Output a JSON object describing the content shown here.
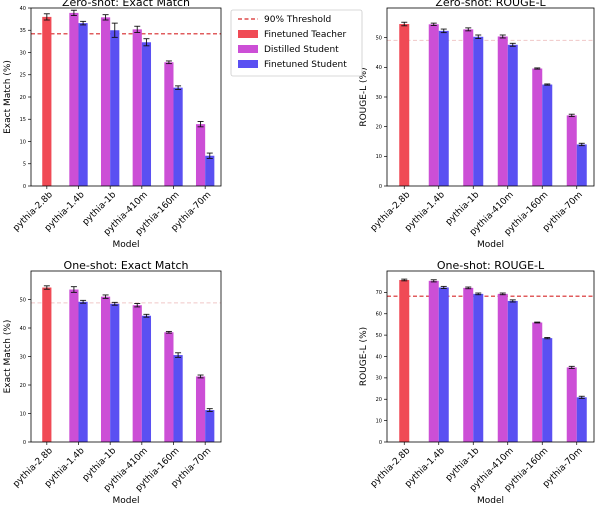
{
  "legend": {
    "items": [
      {
        "label": "90% Threshold",
        "kind": "line",
        "color": "#d62728"
      },
      {
        "label": "Finetuned Teacher",
        "kind": "patch",
        "color": "#f04a55"
      },
      {
        "label": "Distilled Student",
        "kind": "patch",
        "color": "#cc4fd6"
      },
      {
        "label": "Finetuned Student",
        "kind": "patch",
        "color": "#5a50f2"
      }
    ]
  },
  "colors": {
    "teacher": "#f04a55",
    "distilled": "#cc4fd6",
    "finetuned": "#5a50f2",
    "threshold": "#d62728",
    "threshold_faint": "#f0c8c8"
  },
  "chart_data": [
    {
      "type": "bar",
      "title": "Zero-shot: Exact Match",
      "xlabel": "Model",
      "ylabel": "Exact Match (%)",
      "categories": [
        "pythia-2.8b",
        "pythia-1.4b",
        "pythia-1b",
        "pythia-410m",
        "pythia-160m",
        "pythia-70m"
      ],
      "ylim": [
        0,
        40
      ],
      "yticks": [
        0,
        5,
        10,
        15,
        20,
        25,
        30,
        35,
        40
      ],
      "series": [
        {
          "name": "Finetuned Teacher",
          "values": [
            38.0,
            null,
            null,
            null,
            null,
            null
          ],
          "err": [
            0.7,
            null,
            null,
            null,
            null,
            null
          ]
        },
        {
          "name": "Distilled Student",
          "values": [
            null,
            38.9,
            37.9,
            35.2,
            27.8,
            13.9
          ],
          "err": [
            null,
            0.6,
            0.6,
            0.7,
            0.3,
            0.6
          ]
        },
        {
          "name": "Finetuned Student",
          "values": [
            null,
            36.6,
            35.0,
            32.3,
            22.1,
            6.8
          ],
          "err": [
            null,
            0.4,
            1.6,
            0.8,
            0.4,
            0.6
          ]
        }
      ],
      "threshold": 34.2,
      "threshold_style": "strong",
      "legend": "top-right"
    },
    {
      "type": "bar",
      "title": "Zero-shot: ROUGE-L",
      "xlabel": "Model",
      "ylabel": "ROUGE-L (%)",
      "categories": [
        "pythia-2.8b",
        "pythia-1.4b",
        "pythia-1b",
        "pythia-410m",
        "pythia-160m",
        "pythia-70m"
      ],
      "ylim": [
        0,
        60
      ],
      "yticks": [
        0,
        10,
        20,
        30,
        40,
        50
      ],
      "series": [
        {
          "name": "Finetuned Teacher",
          "values": [
            54.6,
            null,
            null,
            null,
            null,
            null
          ],
          "err": [
            0.6,
            null,
            null,
            null,
            null,
            null
          ]
        },
        {
          "name": "Distilled Student",
          "values": [
            null,
            54.5,
            52.8,
            50.4,
            39.6,
            23.8
          ],
          "err": [
            null,
            0.4,
            0.5,
            0.5,
            0.2,
            0.4
          ]
        },
        {
          "name": "Finetuned Student",
          "values": [
            null,
            52.3,
            50.3,
            47.6,
            34.2,
            14.0
          ],
          "err": [
            null,
            0.6,
            0.6,
            0.5,
            0.2,
            0.4
          ]
        }
      ],
      "threshold": 49.1,
      "threshold_style": "faint"
    },
    {
      "type": "bar",
      "title": "One-shot: Exact Match",
      "xlabel": "Model",
      "ylabel": "Exact Match (%)",
      "categories": [
        "pythia-2.8b",
        "pythia-1.4b",
        "pythia-1b",
        "pythia-410m",
        "pythia-160m",
        "pythia-70m"
      ],
      "ylim": [
        0,
        60
      ],
      "yticks": [
        0,
        10,
        20,
        30,
        40,
        50
      ],
      "series": [
        {
          "name": "Finetuned Teacher",
          "values": [
            54.2,
            null,
            null,
            null,
            null,
            null
          ],
          "err": [
            0.6,
            null,
            null,
            null,
            null,
            null
          ]
        },
        {
          "name": "Distilled Student",
          "values": [
            null,
            53.5,
            51.0,
            48.0,
            38.5,
            23.0
          ],
          "err": [
            null,
            1.0,
            0.6,
            0.6,
            0.3,
            0.5
          ]
        },
        {
          "name": "Finetuned Student",
          "values": [
            null,
            49.2,
            48.5,
            44.3,
            30.5,
            11.2
          ],
          "err": [
            null,
            0.5,
            0.5,
            0.5,
            0.8,
            0.5
          ]
        }
      ],
      "threshold": 48.8,
      "threshold_style": "faint"
    },
    {
      "type": "bar",
      "title": "One-shot: ROUGE-L",
      "xlabel": "Model",
      "ylabel": "ROUGE-L (%)",
      "categories": [
        "pythia-2.8b",
        "pythia-1.4b",
        "pythia-1b",
        "pythia-410m",
        "pythia-160m",
        "pythia-70m"
      ],
      "ylim": [
        0,
        80
      ],
      "yticks": [
        0,
        10,
        20,
        30,
        40,
        50,
        60,
        70
      ],
      "series": [
        {
          "name": "Finetuned Teacher",
          "values": [
            75.8,
            null,
            null,
            null,
            null,
            null
          ],
          "err": [
            0.4,
            null,
            null,
            null,
            null,
            null
          ]
        },
        {
          "name": "Distilled Student",
          "values": [
            null,
            75.4,
            72.1,
            69.3,
            55.9,
            34.9
          ],
          "err": [
            null,
            0.5,
            0.4,
            0.4,
            0.2,
            0.5
          ]
        },
        {
          "name": "Finetuned Student",
          "values": [
            null,
            72.3,
            69.3,
            66.0,
            48.6,
            20.9
          ],
          "err": [
            null,
            0.5,
            0.4,
            0.5,
            0.3,
            0.5
          ]
        }
      ],
      "threshold": 68.2,
      "threshold_style": "strong"
    }
  ]
}
